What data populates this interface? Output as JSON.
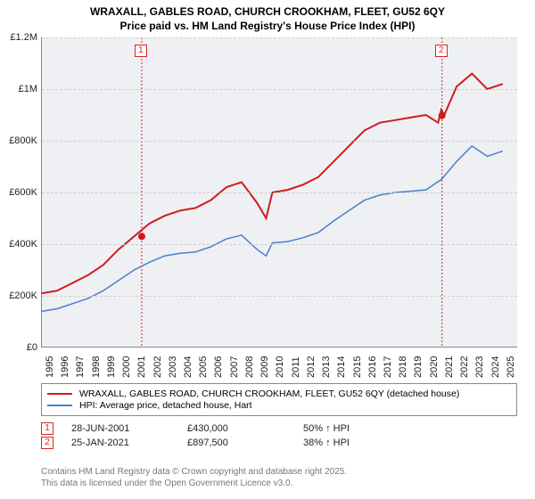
{
  "title_line1": "WRAXALL, GABLES ROAD, CHURCH CROOKHAM, FLEET, GU52 6QY",
  "title_line2": "Price paid vs. HM Land Registry's House Price Index (HPI)",
  "chart": {
    "type": "line",
    "background_color": "#eef0f4",
    "grid_color": "#cfcfcf",
    "axis_color": "#888888",
    "x_range": [
      1995,
      2026
    ],
    "y_range": [
      0,
      1200000
    ],
    "y_ticks": [
      0,
      200000,
      400000,
      600000,
      800000,
      1000000,
      1200000
    ],
    "y_tick_labels": [
      "£0",
      "£200K",
      "£400K",
      "£600K",
      "£800K",
      "£1M",
      "£1.2M"
    ],
    "x_ticks": [
      1995,
      1996,
      1997,
      1998,
      1999,
      2000,
      2001,
      2002,
      2003,
      2004,
      2005,
      2006,
      2007,
      2008,
      2009,
      2010,
      2011,
      2012,
      2013,
      2014,
      2015,
      2016,
      2017,
      2018,
      2019,
      2020,
      2021,
      2022,
      2023,
      2024,
      2025
    ],
    "series": [
      {
        "name": "WRAXALL, GABLES ROAD, CHURCH CROOKHAM, FLEET, GU52 6QY (detached house)",
        "color": "#d11b1b",
        "line_width": 2,
        "points_year": [
          1995,
          1996,
          1997,
          1998,
          1999,
          2000,
          2001,
          2002,
          2003,
          2004,
          2005,
          2006,
          2007,
          2008,
          2009,
          2009.6,
          2010,
          2011,
          2012,
          2013,
          2014,
          2015,
          2016,
          2017,
          2018,
          2019,
          2020,
          2020.8,
          2021,
          2021.2,
          2022,
          2023,
          2024,
          2025
        ],
        "points_value": [
          210000,
          220000,
          250000,
          280000,
          320000,
          380000,
          430000,
          480000,
          510000,
          530000,
          540000,
          570000,
          620000,
          640000,
          560000,
          500000,
          600000,
          610000,
          630000,
          660000,
          720000,
          780000,
          840000,
          870000,
          880000,
          890000,
          900000,
          870000,
          920000,
          900000,
          1010000,
          1060000,
          1000000,
          1020000
        ]
      },
      {
        "name": "HPI: Average price, detached house, Hart",
        "color": "#4a7fc7",
        "line_width": 1.5,
        "points_year": [
          1995,
          1996,
          1997,
          1998,
          1999,
          2000,
          2001,
          2002,
          2003,
          2004,
          2005,
          2006,
          2007,
          2008,
          2009,
          2009.6,
          2010,
          2011,
          2012,
          2013,
          2014,
          2015,
          2016,
          2017,
          2018,
          2019,
          2020,
          2021,
          2022,
          2023,
          2024,
          2025
        ],
        "points_value": [
          140000,
          150000,
          170000,
          190000,
          220000,
          260000,
          300000,
          330000,
          355000,
          365000,
          370000,
          390000,
          420000,
          435000,
          380000,
          355000,
          405000,
          410000,
          425000,
          445000,
          490000,
          530000,
          570000,
          590000,
          600000,
          605000,
          610000,
          650000,
          720000,
          780000,
          740000,
          760000
        ]
      }
    ],
    "markers": [
      {
        "id": "1",
        "year": 2001.5,
        "value": 430000
      },
      {
        "id": "2",
        "year": 2021.05,
        "value": 897500
      }
    ]
  },
  "legend": {
    "s1": "WRAXALL, GABLES ROAD, CHURCH CROOKHAM, FLEET, GU52 6QY (detached house)",
    "s2": "HPI: Average price, detached house, Hart"
  },
  "sales": [
    {
      "id": "1",
      "date": "28-JUN-2001",
      "price": "£430,000",
      "delta": "50% ↑ HPI"
    },
    {
      "id": "2",
      "date": "25-JAN-2021",
      "price": "£897,500",
      "delta": "38% ↑ HPI"
    }
  ],
  "footnote1": "Contains HM Land Registry data © Crown copyright and database right 2025.",
  "footnote2": "This data is licensed under the Open Government Licence v3.0."
}
